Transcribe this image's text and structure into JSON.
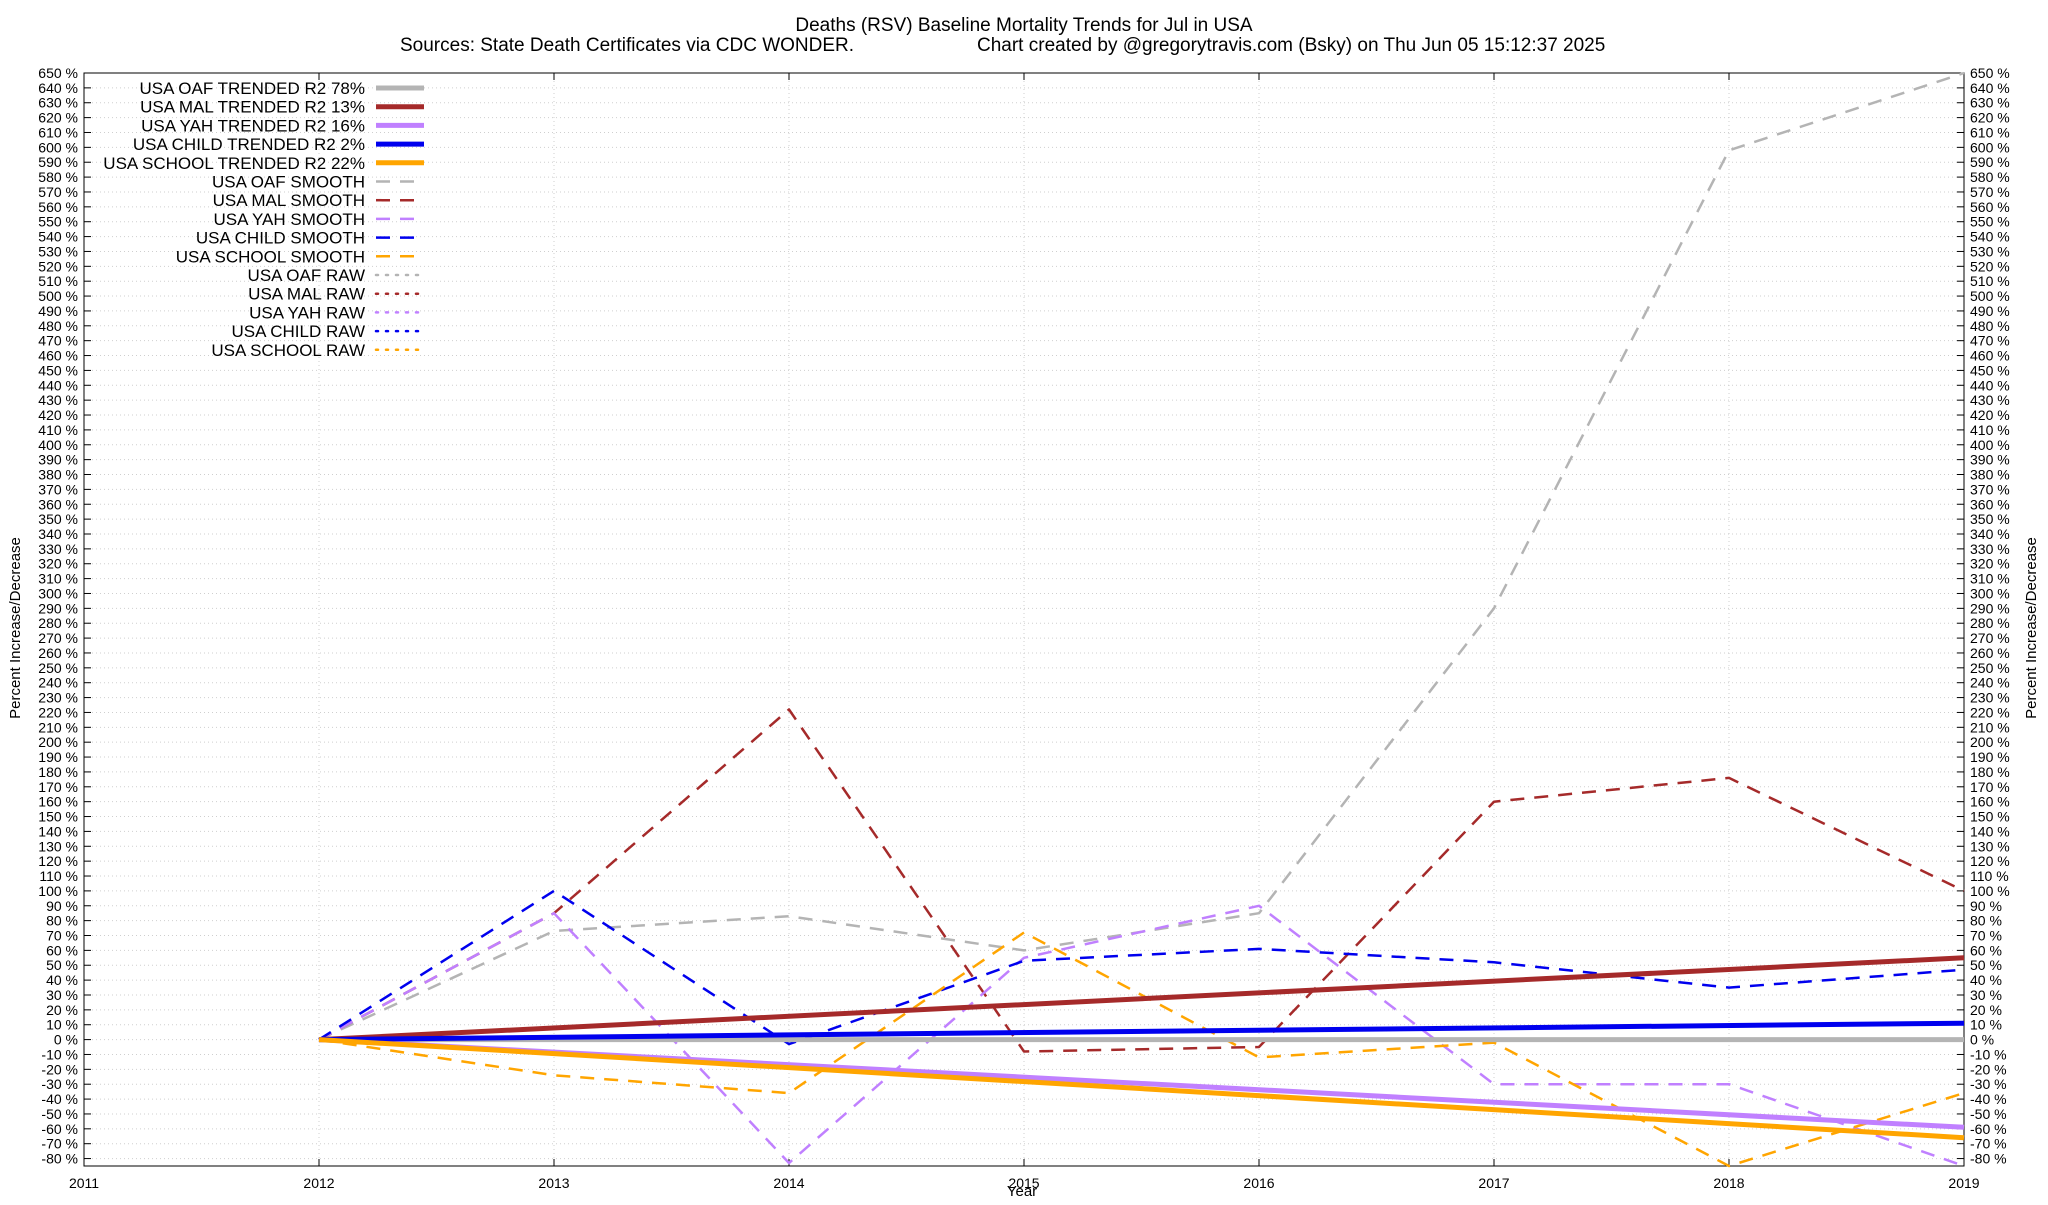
{
  "chart_data": {
    "type": "line",
    "title": "Deaths (RSV)  Baseline Mortality Trends for Jul in USA",
    "subtitle_left": "Sources: State Death Certificates via CDC WONDER.",
    "subtitle_right": "Chart created by @gregorytravis.com (Bsky) on Thu Jun 05 15:12:37 2025",
    "xlabel": "Year",
    "ylabel": "Percent Increase/Decrease",
    "y2label": "Percent Increase/Decrease",
    "xlim": [
      2011,
      2019
    ],
    "ylim": [
      -85,
      650
    ],
    "x_ticks": [
      2011,
      2012,
      2013,
      2014,
      2015,
      2016,
      2017,
      2018,
      2019
    ],
    "y_tick_step": 10,
    "y_tick_suffix": " %",
    "grid": true,
    "legend_position": "top-left",
    "series": [
      {
        "name": "USA OAF TRENDED R2  78%",
        "style": "trend",
        "color": "#b4b4b4",
        "x": [
          2012,
          2019
        ],
        "y": [
          0,
          0
        ]
      },
      {
        "name": "USA MAL TRENDED R2  13%",
        "style": "trend",
        "color": "#a52a2a",
        "x": [
          2012,
          2019
        ],
        "y": [
          0,
          55
        ]
      },
      {
        "name": "USA YAH TRENDED R2  16%",
        "style": "trend",
        "color": "#c080ff",
        "x": [
          2012,
          2019
        ],
        "y": [
          0,
          -59
        ]
      },
      {
        "name": "USA CHILD TRENDED R2   2%",
        "style": "trend",
        "color": "#0000ee",
        "x": [
          2012,
          2019
        ],
        "y": [
          0,
          11
        ]
      },
      {
        "name": "USA SCHOOL TRENDED R2  22%",
        "style": "trend",
        "color": "#ffa500",
        "x": [
          2012,
          2019
        ],
        "y": [
          0,
          -66
        ]
      },
      {
        "name": "USA OAF SMOOTH",
        "style": "smooth",
        "color": "#b4b4b4",
        "x": [
          2012,
          2013,
          2014,
          2015,
          2016,
          2017,
          2018,
          2019
        ],
        "y": [
          0,
          73,
          83,
          60,
          85,
          290,
          598,
          650
        ]
      },
      {
        "name": "USA MAL SMOOTH",
        "style": "smooth",
        "color": "#a52a2a",
        "x": [
          2012,
          2013,
          2014,
          2015,
          2016,
          2017,
          2018,
          2019
        ],
        "y": [
          0,
          85,
          222,
          -8,
          -5,
          160,
          176,
          100
        ]
      },
      {
        "name": "USA YAH SMOOTH",
        "style": "smooth",
        "color": "#c080ff",
        "x": [
          2012,
          2013,
          2014,
          2015,
          2016,
          2017,
          2018,
          2019
        ],
        "y": [
          0,
          85,
          -83,
          55,
          90,
          -30,
          -30,
          -85
        ]
      },
      {
        "name": "USA CHILD SMOOTH",
        "style": "smooth",
        "color": "#0000ee",
        "x": [
          2012,
          2013,
          2014,
          2015,
          2016,
          2017,
          2018,
          2019
        ],
        "y": [
          0,
          100,
          -3,
          53,
          61,
          52,
          35,
          47
        ]
      },
      {
        "name": "USA SCHOOL SMOOTH",
        "style": "smooth",
        "color": "#ffa500",
        "x": [
          2012,
          2013,
          2014,
          2015,
          2016,
          2017,
          2018,
          2019
        ],
        "y": [
          0,
          -24,
          -36,
          72,
          -12,
          -2,
          -85,
          -36
        ]
      },
      {
        "name": "USA OAF RAW",
        "style": "raw",
        "color": "#b4b4b4",
        "x": [],
        "y": []
      },
      {
        "name": "USA MAL RAW",
        "style": "raw",
        "color": "#a52a2a",
        "x": [],
        "y": []
      },
      {
        "name": "USA YAH RAW",
        "style": "raw",
        "color": "#c080ff",
        "x": [],
        "y": []
      },
      {
        "name": "USA CHILD RAW",
        "style": "raw",
        "color": "#0000ee",
        "x": [],
        "y": []
      },
      {
        "name": "USA SCHOOL RAW",
        "style": "raw",
        "color": "#ffa500",
        "x": [],
        "y": []
      }
    ]
  }
}
